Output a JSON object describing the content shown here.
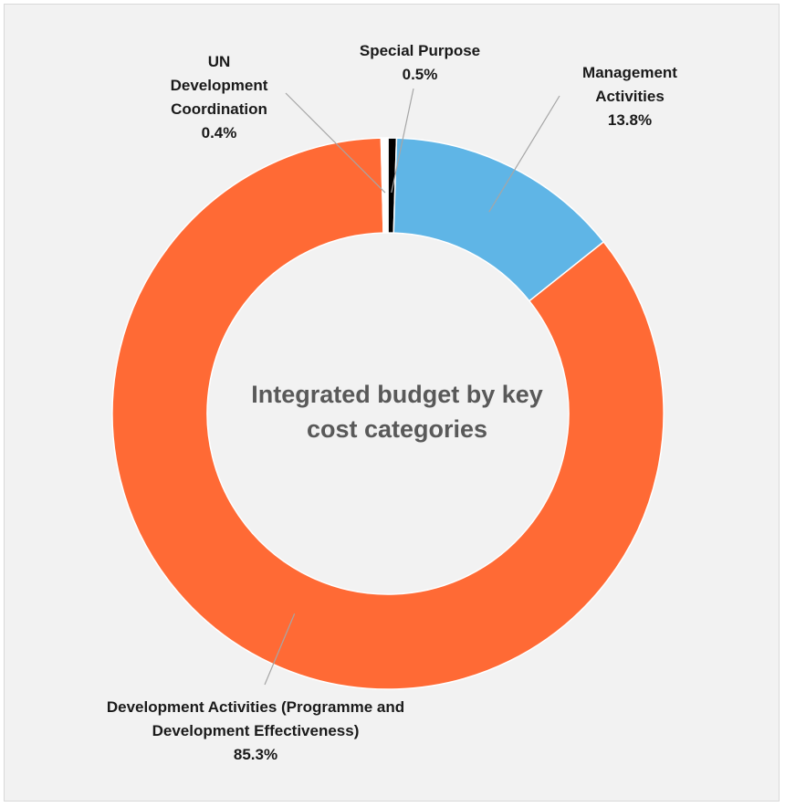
{
  "chart_data": {
    "type": "pie",
    "donut": true,
    "center_title_lines": [
      "Integrated budget by key",
      "cost categories"
    ],
    "slices": [
      {
        "label_lines": [
          "Special Purpose"
        ],
        "value_label": "0.5%",
        "value": 0.5,
        "color": "#000000"
      },
      {
        "label_lines": [
          "Management",
          "Activities"
        ],
        "value_label": "13.8%",
        "value": 13.8,
        "color": "#5fb5e6"
      },
      {
        "label_lines": [
          "Development Activities (Programme and",
          "Development Effectiveness)"
        ],
        "value_label": "85.3%",
        "value": 85.3,
        "color": "#ff6a35"
      },
      {
        "label_lines": [
          "UN",
          "Development",
          "Coordination"
        ],
        "value_label": "0.4%",
        "value": 0.4,
        "color": "#ffffff"
      }
    ],
    "legend": "none",
    "start_angle": "12 o'clock",
    "direction": "clockwise"
  }
}
